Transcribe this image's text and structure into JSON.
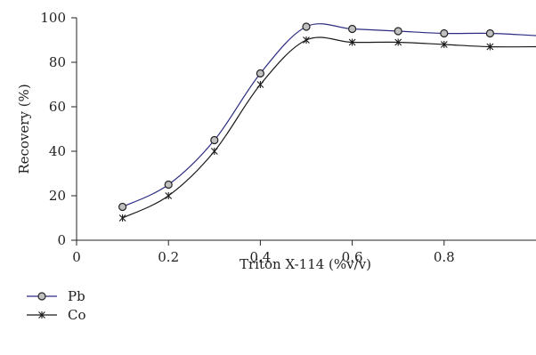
{
  "chart_data": {
    "type": "line",
    "xlabel": "Triton X-114 (%v/v)",
    "ylabel": "Recovery (%)",
    "xlim": [
      0,
      1.0
    ],
    "ylim": [
      0,
      100
    ],
    "xticks": [
      0,
      0.2,
      0.4,
      0.6,
      0.8
    ],
    "xtick_labels": [
      "0",
      "0.2",
      "0.4",
      "0.6",
      "0.8"
    ],
    "yticks": [
      0,
      20,
      40,
      60,
      80,
      100
    ],
    "ytick_labels": [
      "0",
      "20",
      "40",
      "60",
      "80",
      "100"
    ],
    "x": [
      0.1,
      0.2,
      0.3,
      0.4,
      0.5,
      0.6,
      0.7,
      0.8,
      0.9,
      1.0
    ],
    "series": [
      {
        "name": "Pb",
        "marker": "circle",
        "color": "#2b2b80",
        "values": [
          15,
          25,
          45,
          75,
          96,
          95,
          94,
          93,
          93,
          92
        ]
      },
      {
        "name": "Co",
        "marker": "star",
        "color": "#1a1a1a",
        "values": [
          10,
          20,
          40,
          70,
          90,
          89,
          89,
          88,
          87,
          87
        ]
      }
    ],
    "grid": false,
    "legend": "bottom-left"
  }
}
